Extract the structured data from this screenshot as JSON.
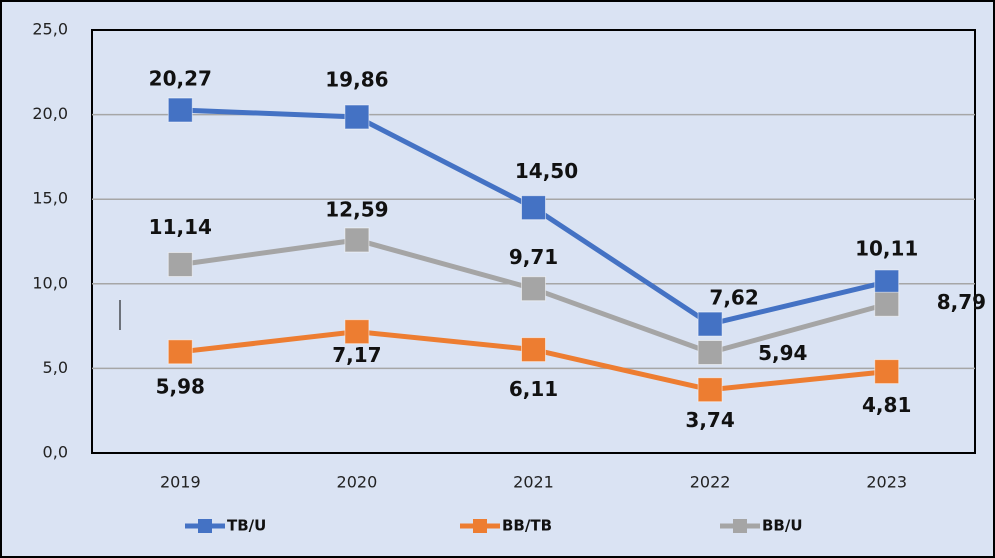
{
  "chart_data": {
    "type": "line",
    "categories": [
      "2019",
      "2020",
      "2021",
      "2022",
      "2023"
    ],
    "series": [
      {
        "name": "TB/U",
        "color": "#4472c4",
        "values": [
          20.27,
          19.86,
          14.5,
          7.62,
          10.11
        ],
        "value_labels": [
          "20,27",
          "19,86",
          "14,50",
          "7,62",
          "10,11"
        ]
      },
      {
        "name": "BB/TB",
        "color": "#ed7d31",
        "values": [
          5.98,
          7.17,
          6.11,
          3.74,
          4.81
        ],
        "value_labels": [
          "5,98",
          "7,17",
          "6,11",
          "3,74",
          "4,81"
        ]
      },
      {
        "name": "BB/U",
        "color": "#a5a5a5",
        "values": [
          11.14,
          12.59,
          9.71,
          5.94,
          8.79
        ],
        "value_labels": [
          "11,14",
          "12,59",
          "9,71",
          "5,94",
          "8,79"
        ]
      }
    ],
    "ylim": [
      0,
      25
    ],
    "yticks": [
      {
        "value": 0,
        "label": "0,0"
      },
      {
        "value": 5,
        "label": "5,0"
      },
      {
        "value": 10,
        "label": "10,0"
      },
      {
        "value": 15,
        "label": "15,0"
      },
      {
        "value": 20,
        "label": "20,0"
      },
      {
        "value": 25,
        "label": "25,0"
      }
    ],
    "grid": true,
    "legend": "bottom"
  }
}
